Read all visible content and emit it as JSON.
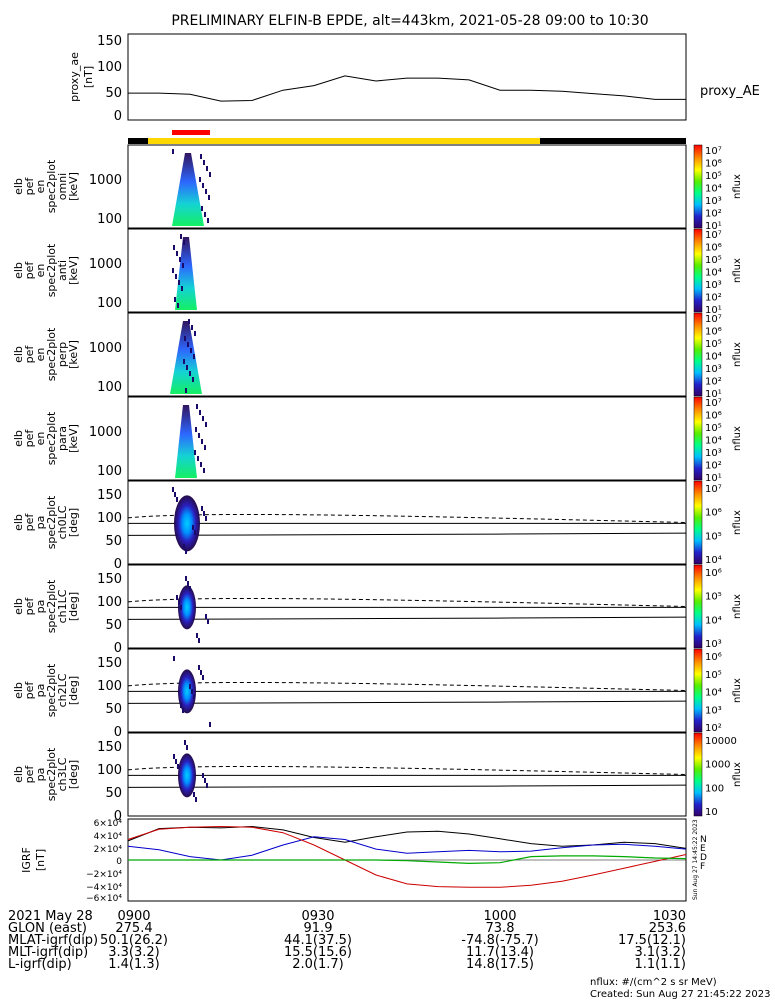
{
  "title": "PRELIMINARY ELFIN-B EPDE, alt=443km, 2021-05-28 09:00 to 10:30",
  "ae_panel": {
    "ylabel_lines": [
      "proxy_ae",
      "[nT]"
    ],
    "series_label": "proxy_AE",
    "yticks": [
      "150",
      "100",
      "50",
      "0"
    ]
  },
  "spectra_panels": [
    {
      "ylabel_lines": [
        "elb",
        "pef",
        "en",
        "spec2plot",
        "omni",
        "[keV]"
      ],
      "yticks": [
        "1000",
        "100"
      ],
      "cbar_ticks": [
        "10⁷",
        "10⁶",
        "10⁵",
        "10⁴",
        "10³",
        "10²",
        "10¹"
      ],
      "cbar_label": "nflux"
    },
    {
      "ylabel_lines": [
        "elb",
        "pef",
        "en",
        "spec2plot",
        "anti",
        "[keV]"
      ],
      "yticks": [
        "1000",
        "100"
      ],
      "cbar_ticks": [
        "10⁷",
        "10⁶",
        "10⁵",
        "10⁴",
        "10³",
        "10²",
        "10¹"
      ],
      "cbar_label": "nflux"
    },
    {
      "ylabel_lines": [
        "elb",
        "pef",
        "en",
        "spec2plot",
        "perp",
        "[keV]"
      ],
      "yticks": [
        "1000",
        "100"
      ],
      "cbar_ticks": [
        "10⁷",
        "10⁶",
        "10⁵",
        "10⁴",
        "10³",
        "10²",
        "10¹"
      ],
      "cbar_label": "nflux"
    },
    {
      "ylabel_lines": [
        "elb",
        "pef",
        "en",
        "spec2plot",
        "para",
        "[keV]"
      ],
      "yticks": [
        "1000",
        "100"
      ],
      "cbar_ticks": [
        "10⁷",
        "10⁶",
        "10⁵",
        "10⁴",
        "10³",
        "10²",
        "10¹"
      ],
      "cbar_label": "nflux"
    }
  ],
  "pa_panels": [
    {
      "ylabel_lines": [
        "elb",
        "pef",
        "pa",
        "spec2plot",
        "ch0LC",
        "[deg]"
      ],
      "yticks": [
        "150",
        "100",
        "50",
        "0"
      ],
      "cbar_ticks": [
        "10⁷",
        "10⁶",
        "10⁵",
        "10⁴"
      ],
      "cbar_label": "nflux"
    },
    {
      "ylabel_lines": [
        "elb",
        "pef",
        "pa",
        "spec2plot",
        "ch1LC",
        "[deg]"
      ],
      "yticks": [
        "150",
        "100",
        "50",
        "0"
      ],
      "cbar_ticks": [
        "10⁶",
        "10⁵",
        "10⁴",
        "10³"
      ],
      "cbar_label": "nflux"
    },
    {
      "ylabel_lines": [
        "elb",
        "pef",
        "pa",
        "spec2plot",
        "ch2LC",
        "[deg]"
      ],
      "yticks": [
        "150",
        "100",
        "50",
        "0"
      ],
      "cbar_ticks": [
        "10⁶",
        "10⁵",
        "10⁴",
        "10³",
        "10²"
      ],
      "cbar_label": "nflux"
    },
    {
      "ylabel_lines": [
        "elb",
        "pef",
        "pa",
        "spec2plot",
        "ch3LC",
        "[deg]"
      ],
      "yticks": [
        "150",
        "100",
        "50",
        "0"
      ],
      "cbar_ticks": [
        "10000",
        "1000",
        "100",
        "10"
      ],
      "cbar_label": "nflux"
    }
  ],
  "grf_panel": {
    "ylabel_lines": [
      "IGRF",
      "[nT]"
    ],
    "yticks": [
      "6×10⁴",
      "4×10⁴",
      "2×10⁴",
      "0",
      "−2×10⁴",
      "−4×10⁴",
      "−6×10⁴"
    ],
    "legend": [
      "N",
      "E",
      "D",
      "F"
    ],
    "side_note": "Sun Aug 27 14:45:22 2023"
  },
  "colors": {
    "ae_line": "#000000",
    "bar_black": "#000000",
    "bar_yellow": "#ffd700",
    "bar_red": "#ff0000",
    "grf_black": "#000000",
    "grf_blue": "#0000cc",
    "grf_red": "#cc0000",
    "grf_green": "#00aa00"
  },
  "footer": {
    "rows": [
      {
        "label": "2021 May 28",
        "values": [
          "0900",
          "0930",
          "1000",
          "1030"
        ]
      },
      {
        "label": "GLON (east)",
        "values": [
          "275.4",
          "91.9",
          "73.8",
          "253.6"
        ]
      },
      {
        "label": "MLAT-igrf(dip)",
        "values": [
          "50.1(26.2)",
          "44.1(37.5)",
          "-74.8(-75.7)",
          "17.5(12.1)"
        ]
      },
      {
        "label": "MLT-igrf(dip)",
        "values": [
          "3.3(3.2)",
          "15.5(15.6)",
          "11.7(13.4)",
          "3.1(3.2)"
        ]
      },
      {
        "label": "L-igrf(dip)",
        "values": [
          "1.4(1.3)",
          "2.0(1.7)",
          "14.8(17.5)",
          "1.1(1.1)"
        ]
      }
    ],
    "units_note": "nflux: #/(cm^2 s sr MeV)",
    "created": "Created: Sun Aug 27 21:45:22 2023"
  },
  "chart_data": {
    "type": "line",
    "ae_series": {
      "x": [
        "09:00",
        "09:05",
        "09:10",
        "09:15",
        "09:20",
        "09:25",
        "09:30",
        "09:35",
        "09:40",
        "09:45",
        "09:50",
        "09:55",
        "10:00",
        "10:05",
        "10:10",
        "10:15",
        "10:20",
        "10:25",
        "10:30"
      ],
      "values": [
        47,
        47,
        45,
        33,
        34,
        52,
        60,
        77,
        68,
        73,
        73,
        70,
        52,
        52,
        50,
        46,
        42,
        36,
        36
      ],
      "ylim": [
        0,
        150
      ]
    },
    "grf_series": {
      "x": [
        "09:00",
        "09:05",
        "09:10",
        "09:15",
        "09:20",
        "09:25",
        "09:30",
        "09:35",
        "09:40",
        "09:45",
        "09:50",
        "09:55",
        "10:00",
        "10:05",
        "10:10",
        "10:15",
        "10:20",
        "10:25",
        "10:30"
      ],
      "black": [
        28000,
        46000,
        48000,
        47000,
        49000,
        44000,
        33000,
        26000,
        34000,
        41000,
        42000,
        38000,
        31000,
        24000,
        20000,
        22000,
        26000,
        24000,
        17000
      ],
      "blue": [
        20000,
        15000,
        5000,
        0,
        7000,
        22000,
        34000,
        30000,
        16000,
        10000,
        12000,
        14000,
        12000,
        13000,
        18000,
        22000,
        23000,
        20000,
        16000
      ],
      "red": [
        30000,
        45000,
        48000,
        49000,
        48000,
        40000,
        22000,
        0,
        -22000,
        -35000,
        -39000,
        -40000,
        -40000,
        -37000,
        -31000,
        -22000,
        -12000,
        -2000,
        8000
      ],
      "green": [
        0,
        0,
        0,
        0,
        0,
        0,
        0,
        0,
        0,
        -1000,
        -3000,
        -5000,
        -4000,
        5000,
        6000,
        6000,
        5000,
        3000,
        2000
      ],
      "ylim": [
        -60000,
        60000
      ]
    }
  }
}
